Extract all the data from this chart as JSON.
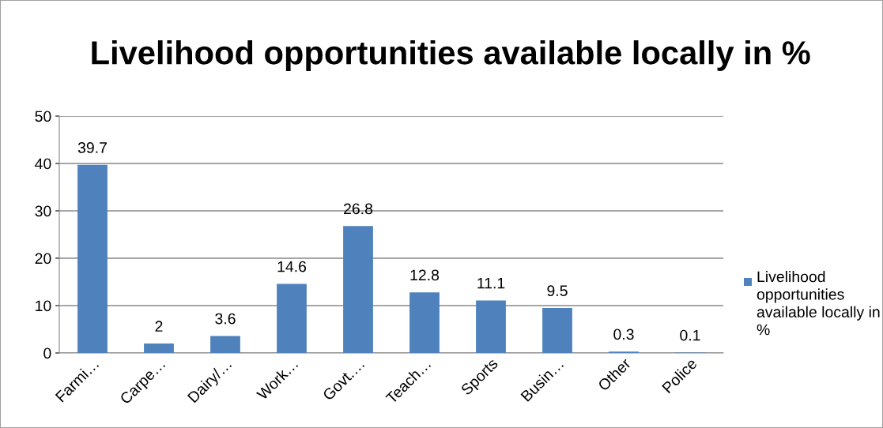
{
  "chart_data": {
    "type": "bar",
    "title": "Livelihood opportunities available locally in %",
    "categories": [
      "Farmi…",
      "Carpe…",
      "Dairy/…",
      "Work…",
      "Govt.…",
      "Teach…",
      "Sports",
      "Busin…",
      "Other",
      "Police"
    ],
    "series": [
      {
        "name": "Livelihood opportunities available locally in %",
        "color": "#4f81bd",
        "values": [
          39.7,
          2,
          3.6,
          14.6,
          26.8,
          12.8,
          11.1,
          9.5,
          0.3,
          0.1
        ]
      }
    ],
    "ylim": [
      0,
      50
    ],
    "yticks": [
      0,
      10,
      20,
      30,
      40,
      50
    ],
    "grid": "y",
    "legend": "right",
    "data_labels": true
  }
}
